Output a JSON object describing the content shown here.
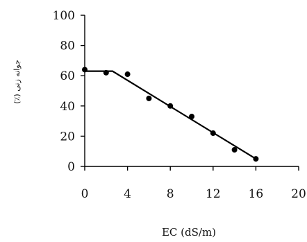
{
  "chart_data": {
    "type": "scatter",
    "xlabel": "EC (dS/m)",
    "ylabel": "جوانه زنی (٪)",
    "xlim": [
      0,
      20
    ],
    "ylim": [
      0,
      100
    ],
    "x_ticks": [
      "0",
      "4",
      "8",
      "12",
      "16",
      "20"
    ],
    "y_ticks": [
      "0",
      "20",
      "40",
      "60",
      "80",
      "100"
    ],
    "grid": false,
    "series": [
      {
        "type": "scatter",
        "x": [
          0,
          2,
          4,
          6,
          8,
          10,
          12,
          14,
          16
        ],
        "y": [
          64,
          62,
          61,
          45,
          40,
          33,
          22,
          11,
          5
        ]
      },
      {
        "type": "line",
        "x": [
          0,
          2.6,
          16
        ],
        "y": [
          63,
          63,
          5
        ]
      }
    ],
    "colors": {
      "marker": "#000000",
      "line": "#000000",
      "axis": "#000000"
    }
  }
}
